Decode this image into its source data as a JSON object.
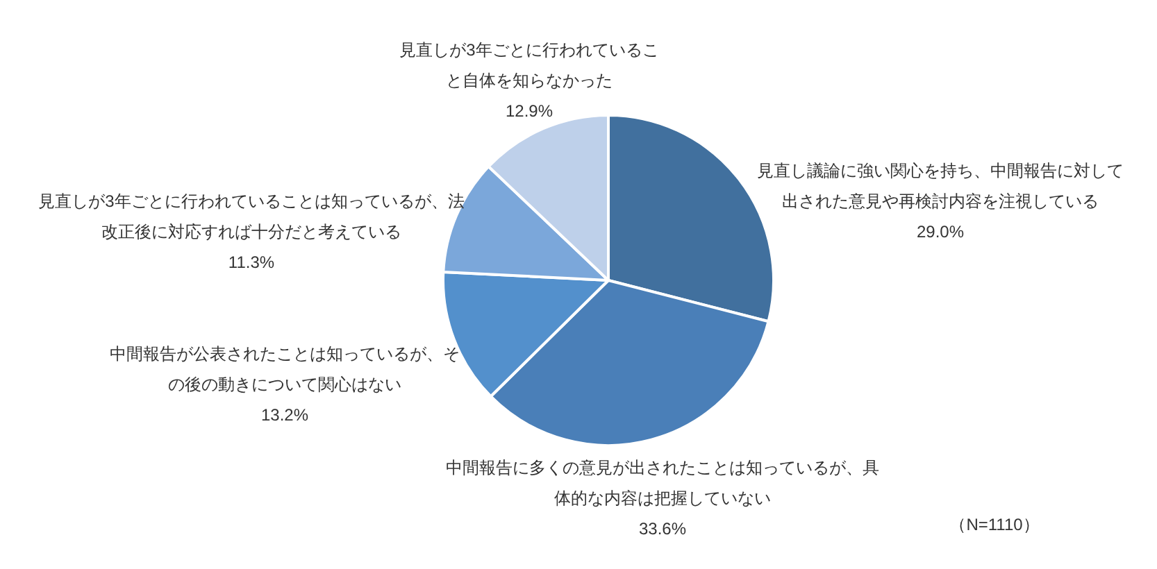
{
  "chart_data": {
    "type": "pie",
    "categories": [
      "見直し議論に強い関心を持ち、中間報告に対して出された意見や再検討内容を注視している",
      "中間報告に多くの意見が出されたことは知っているが、具体的な内容は把握していない",
      "中間報告が公表されたことは知っているが、その後の動きについて関心はない",
      "見直しが3年ごとに行われていることは知っているが、法改正後に対応すれば十分だと考えている",
      "見直しが3年ごとに行われていること自体を知らなかった"
    ],
    "values": [
      29.0,
      33.6,
      13.2,
      11.3,
      12.9
    ],
    "colors": [
      "#41709e",
      "#4a7fb8",
      "#5390cc",
      "#7ba7da",
      "#bed0ea"
    ],
    "value_labels": [
      "29.0%",
      "33.6%",
      "13.2%",
      "11.3%",
      "12.9%"
    ],
    "annotations": [
      "（N=1110）"
    ]
  }
}
